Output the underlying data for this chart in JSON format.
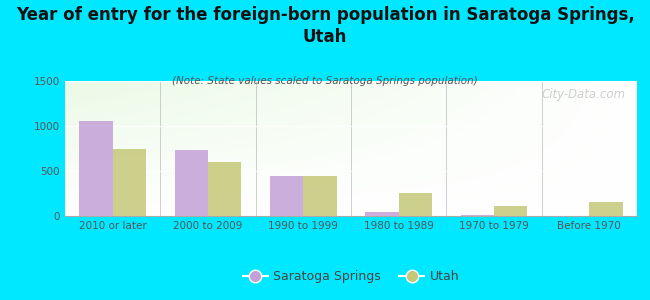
{
  "title": "Year of entry for the foreign-born population in Saratoga Springs,\nUtah",
  "subtitle": "(Note: State values scaled to Saratoga Springs population)",
  "categories": [
    "2010 or later",
    "2000 to 2009",
    "1990 to 1999",
    "1980 to 1989",
    "1970 to 1979",
    "Before 1970"
  ],
  "saratoga_values": [
    1055,
    730,
    450,
    50,
    8,
    0
  ],
  "utah_values": [
    740,
    600,
    450,
    255,
    115,
    155
  ],
  "saratoga_color": "#c4a0d8",
  "utah_color": "#c5c878",
  "background_color": "#00e8ff",
  "ylim": [
    0,
    1500
  ],
  "yticks": [
    0,
    500,
    1000,
    1500
  ],
  "bar_width": 0.35,
  "legend_saratoga": "Saratoga Springs",
  "legend_utah": "Utah",
  "watermark": "City-Data.com",
  "title_fontsize": 12,
  "subtitle_fontsize": 7.5,
  "tick_fontsize": 7.5,
  "legend_fontsize": 9,
  "title_color": "#111111",
  "subtitle_color": "#555555",
  "tick_color": "#555555"
}
